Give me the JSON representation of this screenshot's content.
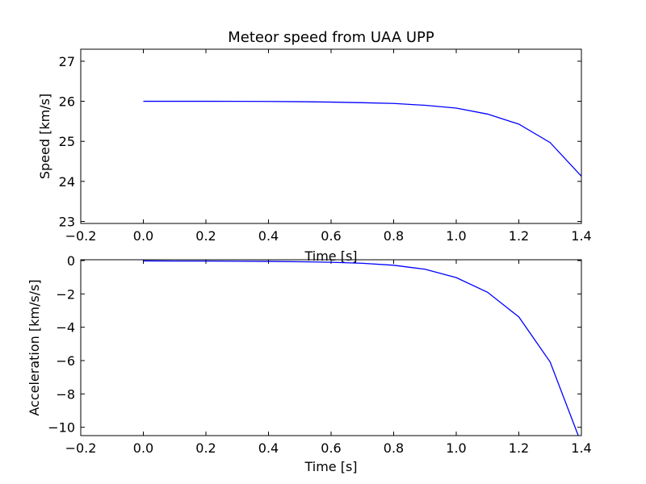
{
  "chart_data": [
    {
      "type": "line",
      "title": "Meteor speed from  UAA UPP",
      "xlabel": "Time [s]",
      "ylabel": "Speed [km/s]",
      "xlim": [
        -0.2,
        1.4
      ],
      "ylim": [
        22.95,
        27.3
      ],
      "xticks": [
        -0.2,
        0.0,
        0.2,
        0.4,
        0.6,
        0.8,
        1.0,
        1.2,
        1.4
      ],
      "xtick_labels": [
        "−0.2",
        "0.0",
        "0.2",
        "0.4",
        "0.6",
        "0.8",
        "1.0",
        "1.2",
        "1.4"
      ],
      "yticks": [
        23,
        24,
        25,
        26,
        27
      ],
      "ytick_labels": [
        "23",
        "24",
        "25",
        "26",
        "27"
      ],
      "grid": false,
      "line_color": "#0000ff",
      "series": [
        {
          "x": [
            0.0,
            0.1,
            0.2,
            0.3,
            0.4,
            0.5,
            0.6,
            0.7,
            0.8,
            0.9,
            1.0,
            1.1,
            1.2,
            1.3,
            1.4
          ],
          "y": [
            26.0,
            26.0,
            26.0,
            25.999,
            25.996,
            25.99,
            25.98,
            25.965,
            25.945,
            25.9,
            25.83,
            25.68,
            25.43,
            24.97,
            24.13
          ]
        }
      ]
    },
    {
      "type": "line",
      "title": "",
      "xlabel": "Time [s]",
      "ylabel": "Acceleration [km/s/s]",
      "xlim": [
        -0.2,
        1.4
      ],
      "ylim": [
        -10.5,
        0.05
      ],
      "xticks": [
        -0.2,
        0.0,
        0.2,
        0.4,
        0.6,
        0.8,
        1.0,
        1.2,
        1.4
      ],
      "xtick_labels": [
        "−0.2",
        "0.0",
        "0.2",
        "0.4",
        "0.6",
        "0.8",
        "1.0",
        "1.2",
        "1.4"
      ],
      "yticks": [
        0,
        -2,
        -4,
        -6,
        -8,
        -10
      ],
      "ytick_labels": [
        "0",
        "−2",
        "−4",
        "−6",
        "−8",
        "−10"
      ],
      "grid": false,
      "line_color": "#0000ff",
      "series": [
        {
          "x": [
            0.0,
            0.1,
            0.2,
            0.3,
            0.4,
            0.5,
            0.6,
            0.7,
            0.8,
            0.9,
            1.0,
            1.1,
            1.2,
            1.3,
            1.39
          ],
          "y": [
            -0.02,
            -0.03,
            -0.03,
            -0.04,
            -0.05,
            -0.07,
            -0.1,
            -0.16,
            -0.28,
            -0.52,
            -1.02,
            -1.9,
            -3.38,
            -6.08,
            -10.5
          ]
        }
      ]
    }
  ]
}
